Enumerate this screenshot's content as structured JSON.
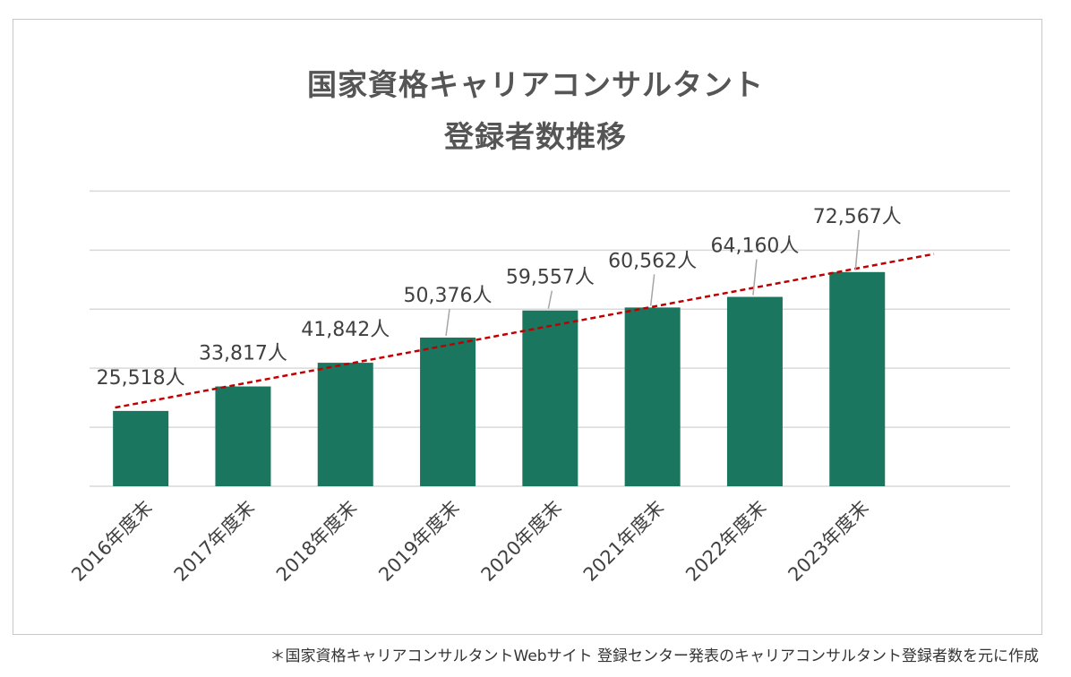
{
  "title": {
    "line1": "国家資格キャリアコンサルタント",
    "line2": "登録者数推移"
  },
  "footnote": "＊国家資格キャリアコンサルタントWebサイト 登録センター発表のキャリアコンサルタント登録者数を元に作成",
  "colors": {
    "bar": "#1b7660",
    "trendline": "#c00000",
    "gridline": "#d9d9d9",
    "label_text": "#404040",
    "leader_line": "#a6a6a6"
  },
  "chart_data": {
    "type": "bar",
    "title": "国家資格キャリアコンサルタント 登録者数推移",
    "categories": [
      "2016年度末",
      "2017年度末",
      "2018年度末",
      "2019年度末",
      "2020年度末",
      "2021年度末",
      "2022年度末",
      "2023年度末"
    ],
    "values": [
      25518,
      33817,
      41842,
      50376,
      59557,
      60562,
      64160,
      72567
    ],
    "data_labels": [
      "25,518人",
      "33,817人",
      "41,842人",
      "50,376人",
      "59,557人",
      "60,562人",
      "64,160人",
      "72,567人"
    ],
    "ylim": [
      0,
      100000
    ],
    "gridlines": true,
    "trendline": "linear",
    "xlabel": "",
    "ylabel": ""
  }
}
